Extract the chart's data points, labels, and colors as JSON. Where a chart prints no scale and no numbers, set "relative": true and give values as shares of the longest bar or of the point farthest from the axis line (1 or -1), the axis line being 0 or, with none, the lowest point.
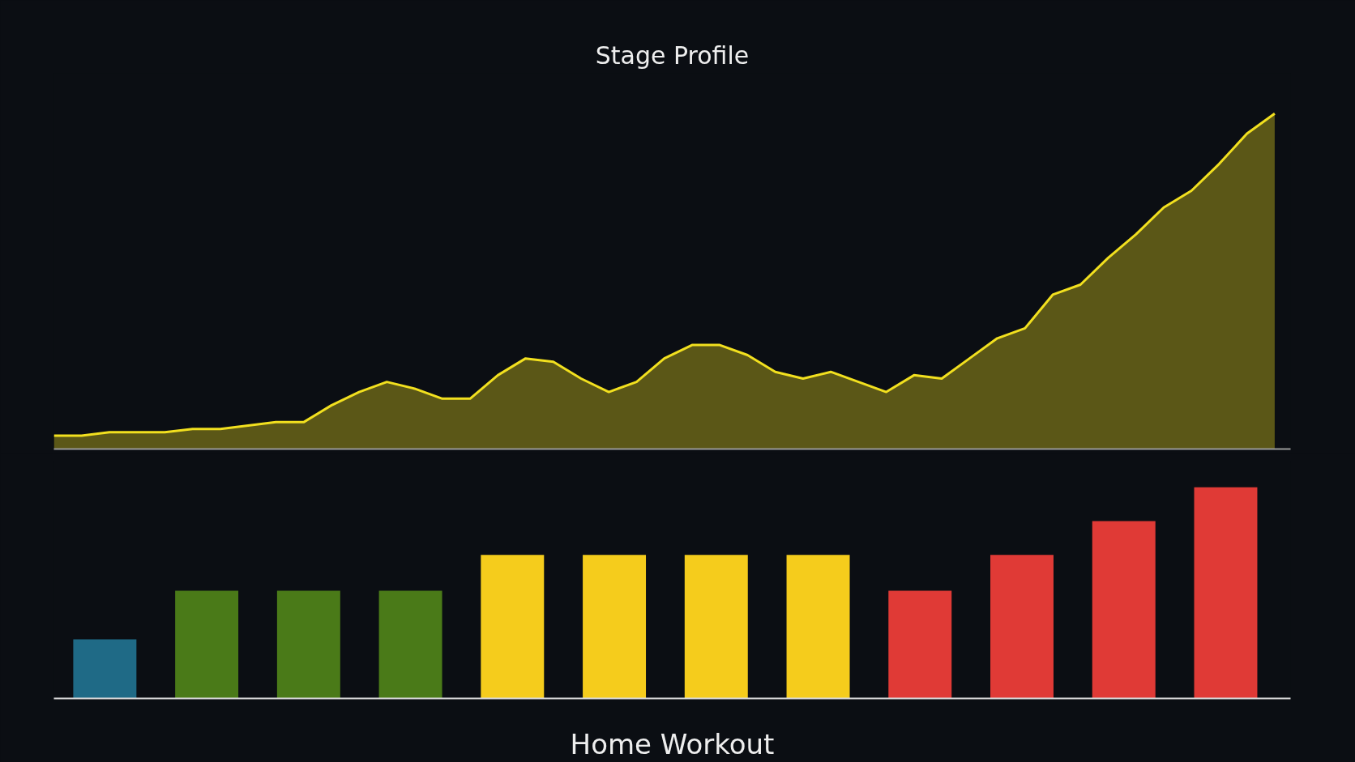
{
  "chart_data": [
    {
      "type": "area",
      "title": "Stage Profile",
      "relative": true,
      "marker": "none",
      "line_style": "solid",
      "categories": [
        null,
        null,
        null,
        null,
        null,
        null,
        null,
        null,
        null,
        null,
        null,
        null,
        null,
        null,
        null,
        null,
        null,
        null,
        null,
        null,
        null,
        null,
        null,
        null,
        null,
        null,
        null,
        null,
        null,
        null,
        null,
        null,
        null,
        null,
        null,
        null,
        null,
        null,
        null,
        null,
        null,
        null,
        null,
        null,
        null
      ],
      "series": [
        {
          "color": "#f2e01f",
          "values": [
            0.04,
            0.04,
            0.05,
            0.05,
            0.05,
            0.06,
            0.06,
            0.07,
            0.08,
            0.08,
            0.13,
            0.17,
            0.2,
            0.18,
            0.15,
            0.15,
            0.22,
            0.27,
            0.26,
            0.21,
            0.17,
            0.2,
            0.27,
            0.31,
            0.31,
            0.28,
            0.23,
            0.21,
            0.23,
            0.2,
            0.17,
            0.22,
            0.21,
            0.27,
            0.33,
            0.36,
            0.46,
            0.49,
            0.57,
            0.64,
            0.72,
            0.77,
            0.85,
            0.94,
            1.0
          ]
        }
      ]
    },
    {
      "type": "bar",
      "xlabel": "Home Workout",
      "relative": true,
      "categories": [
        null,
        null,
        null,
        null,
        null,
        null,
        null,
        null,
        null,
        null,
        null,
        null
      ],
      "colors": [
        "#1f6a86",
        "#4a7a18",
        "#4a7a18",
        "#4a7a18",
        "#f5cc1c",
        "#f5cc1c",
        "#f5cc1c",
        "#f5cc1c",
        "#e03a36",
        "#e03a36",
        "#e03a36",
        "#e03a36"
      ],
      "values": [
        0.28,
        0.51,
        0.51,
        0.51,
        0.68,
        0.68,
        0.68,
        0.68,
        0.51,
        0.68,
        0.84,
        1.0
      ]
    }
  ]
}
